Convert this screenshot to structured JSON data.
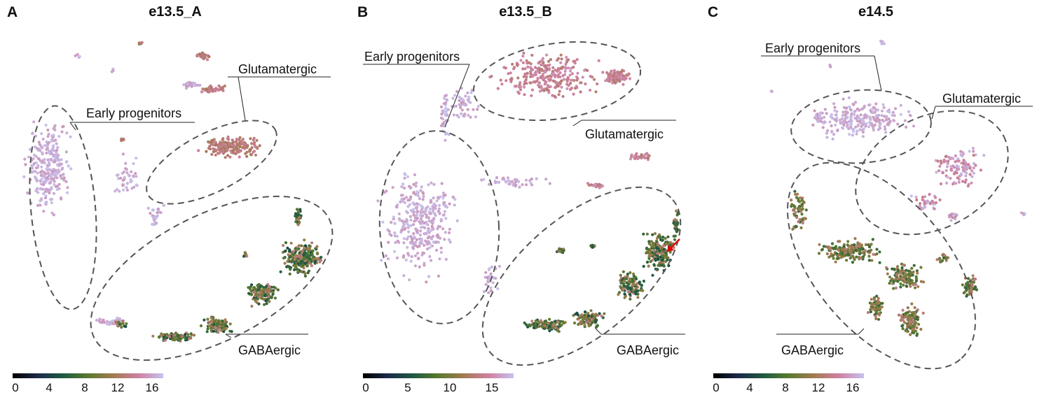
{
  "chart_data": [
    {
      "type": "scatter",
      "panel_letter": "A",
      "title": "e13.5_A",
      "colorbar": {
        "ticks": [
          "0",
          "4",
          "8",
          "12",
          "16"
        ],
        "min": 0,
        "max": 18,
        "colormap": [
          "#000000",
          "#1d2a4a",
          "#1e5a43",
          "#5a7a2e",
          "#a27a52",
          "#cf80a0",
          "#c6c2ee"
        ]
      },
      "clusters": [
        {
          "label": "Early progenitors",
          "value_range": [
            16,
            18
          ]
        },
        {
          "label": "Glutamatergic",
          "value_range": [
            12,
            15
          ]
        },
        {
          "label": "GABAergic",
          "value_range": [
            5,
            14
          ]
        }
      ]
    },
    {
      "type": "scatter",
      "panel_letter": "B",
      "title": "e13.5_B",
      "colorbar": {
        "ticks": [
          "0",
          "5",
          "10",
          "15"
        ],
        "min": 0,
        "max": 18,
        "colormap": [
          "#000000",
          "#1d2a4a",
          "#1e5a43",
          "#5a7a2e",
          "#a27a52",
          "#cf80a0",
          "#c6c2ee"
        ]
      },
      "clusters": [
        {
          "label": "Early progenitors",
          "value_range": [
            16,
            18
          ]
        },
        {
          "label": "Glutamatergic",
          "value_range": [
            13,
            16
          ]
        },
        {
          "label": "GABAergic",
          "value_range": [
            5,
            14
          ]
        }
      ],
      "annotation": "red arrow"
    },
    {
      "type": "scatter",
      "panel_letter": "C",
      "title": "e14.5",
      "colorbar": {
        "ticks": [
          "0",
          "4",
          "8",
          "12",
          "16"
        ],
        "min": 0,
        "max": 18,
        "colormap": [
          "#000000",
          "#1d2a4a",
          "#1e5a43",
          "#5a7a2e",
          "#a27a52",
          "#cf80a0",
          "#c6c2ee"
        ]
      },
      "clusters": [
        {
          "label": "Early progenitors",
          "value_range": [
            16,
            18
          ]
        },
        {
          "label": "Glutamatergic",
          "value_range": [
            14,
            18
          ]
        },
        {
          "label": "GABAergic",
          "value_range": [
            7,
            14
          ]
        }
      ]
    }
  ]
}
